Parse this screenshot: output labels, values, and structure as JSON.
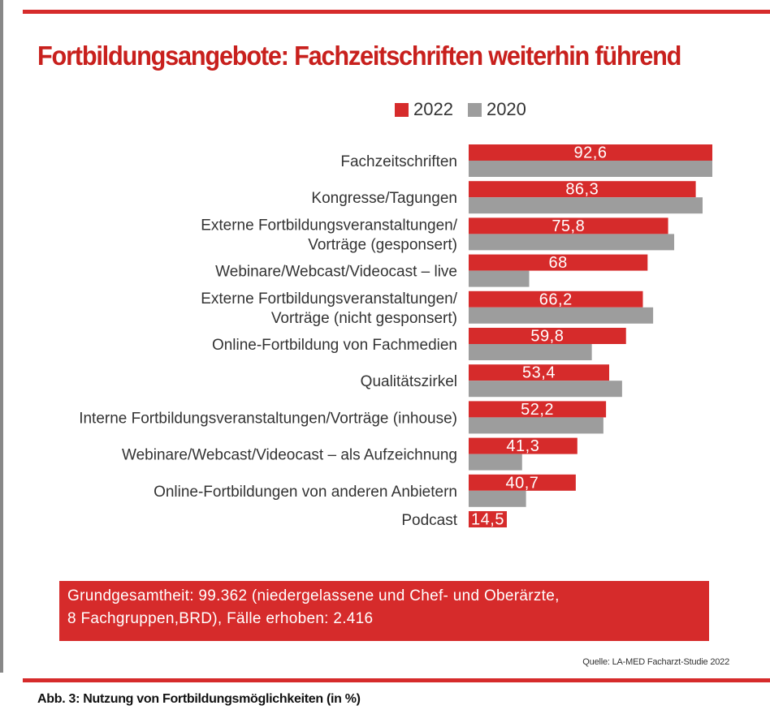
{
  "chart_data": {
    "type": "bar",
    "orientation": "horizontal",
    "title": "Fortbildungsangebote: Fachzeitschriften weiterhin führend",
    "categories": [
      [
        "Fachzeitschriften"
      ],
      [
        "Kongresse/Tagungen"
      ],
      [
        "Externe Fortbildungsveranstaltungen/",
        "Vorträge (gesponsert)"
      ],
      [
        "Webinare/Webcast/Videocast – live"
      ],
      [
        "Externe Fortbildungsveranstaltungen/",
        "Vorträge (nicht gesponsert)"
      ],
      [
        "Online-Fortbildung von Fachmedien"
      ],
      [
        "Qualitätszirkel"
      ],
      [
        "Interne Fortbildungsveranstaltungen/Vorträge (inhouse)"
      ],
      [
        "Webinare/Webcast/Videocast – als Aufzeichnung"
      ],
      [
        "Online-Fortbildungen von anderen Anbietern"
      ],
      [
        "Podcast"
      ]
    ],
    "series": [
      {
        "name": "2022",
        "color": "#d62b2b",
        "values": [
          92.6,
          86.3,
          75.8,
          68,
          66.2,
          59.8,
          53.4,
          52.2,
          41.3,
          40.7,
          14.5
        ],
        "labels": [
          "92,6",
          "86,3",
          "75,8",
          "68",
          "66,2",
          "59,8",
          "53,4",
          "52,2",
          "41,3",
          "40,7",
          "14,5"
        ]
      },
      {
        "name": "2020",
        "color": "#9d9d9d",
        "values": [
          92.6,
          88.9,
          78.1,
          23,
          70.1,
          46.8,
          58.3,
          51.2,
          20.3,
          21.8,
          null
        ]
      }
    ],
    "xlim": [
      0,
      92.6
    ],
    "grid": false,
    "legend": "top-right"
  },
  "info_box": {
    "line1": "Grundgesamtheit: 99.362 (niedergelassene und Chef- und Oberärzte,",
    "line2": "8 Fachgruppen,BRD), Fälle erhoben: 2.416"
  },
  "source": "Quelle: LA-MED Facharzt-Studie 2022",
  "caption": "Abb. 3: Nutzung von Fortbildungsmöglichkeiten (in %)"
}
